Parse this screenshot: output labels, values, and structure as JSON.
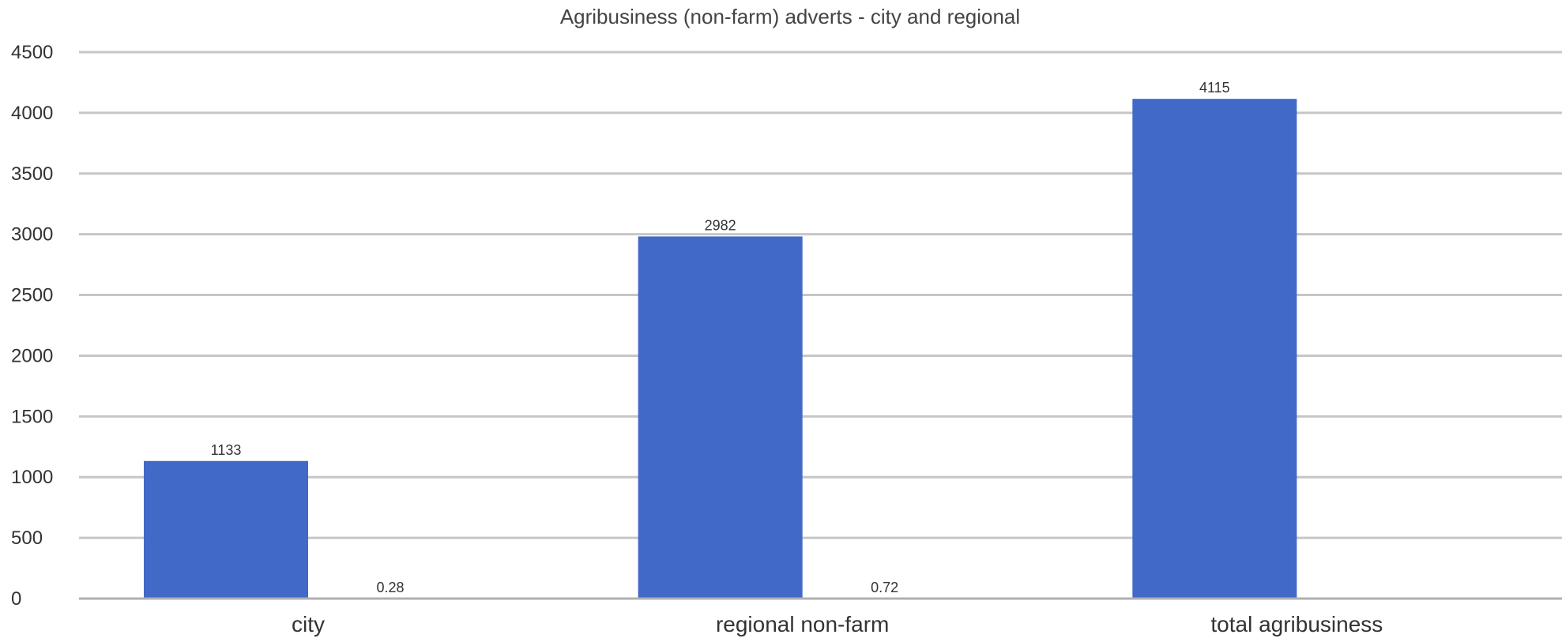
{
  "chart_data": {
    "type": "bar",
    "title": "Agribusiness (non-farm) adverts - city and regional",
    "xlabel": "",
    "ylabel": "",
    "categories": [
      "city",
      "regional non-farm",
      "total agribusiness"
    ],
    "series": [
      {
        "values": [
          1133,
          2982,
          4115
        ],
        "color": "#4169c8",
        "labels": [
          "1133",
          "2982",
          "4115"
        ]
      },
      {
        "values": [
          0.28,
          0.72,
          null
        ],
        "color": "#e06030",
        "labels": [
          "0.28",
          "0.72",
          ""
        ]
      }
    ],
    "ylim": [
      0,
      4500
    ],
    "yticks": [
      0,
      500,
      1000,
      1500,
      2000,
      2500,
      3000,
      3500,
      4000,
      4500
    ],
    "grid": true,
    "legend": "none"
  }
}
